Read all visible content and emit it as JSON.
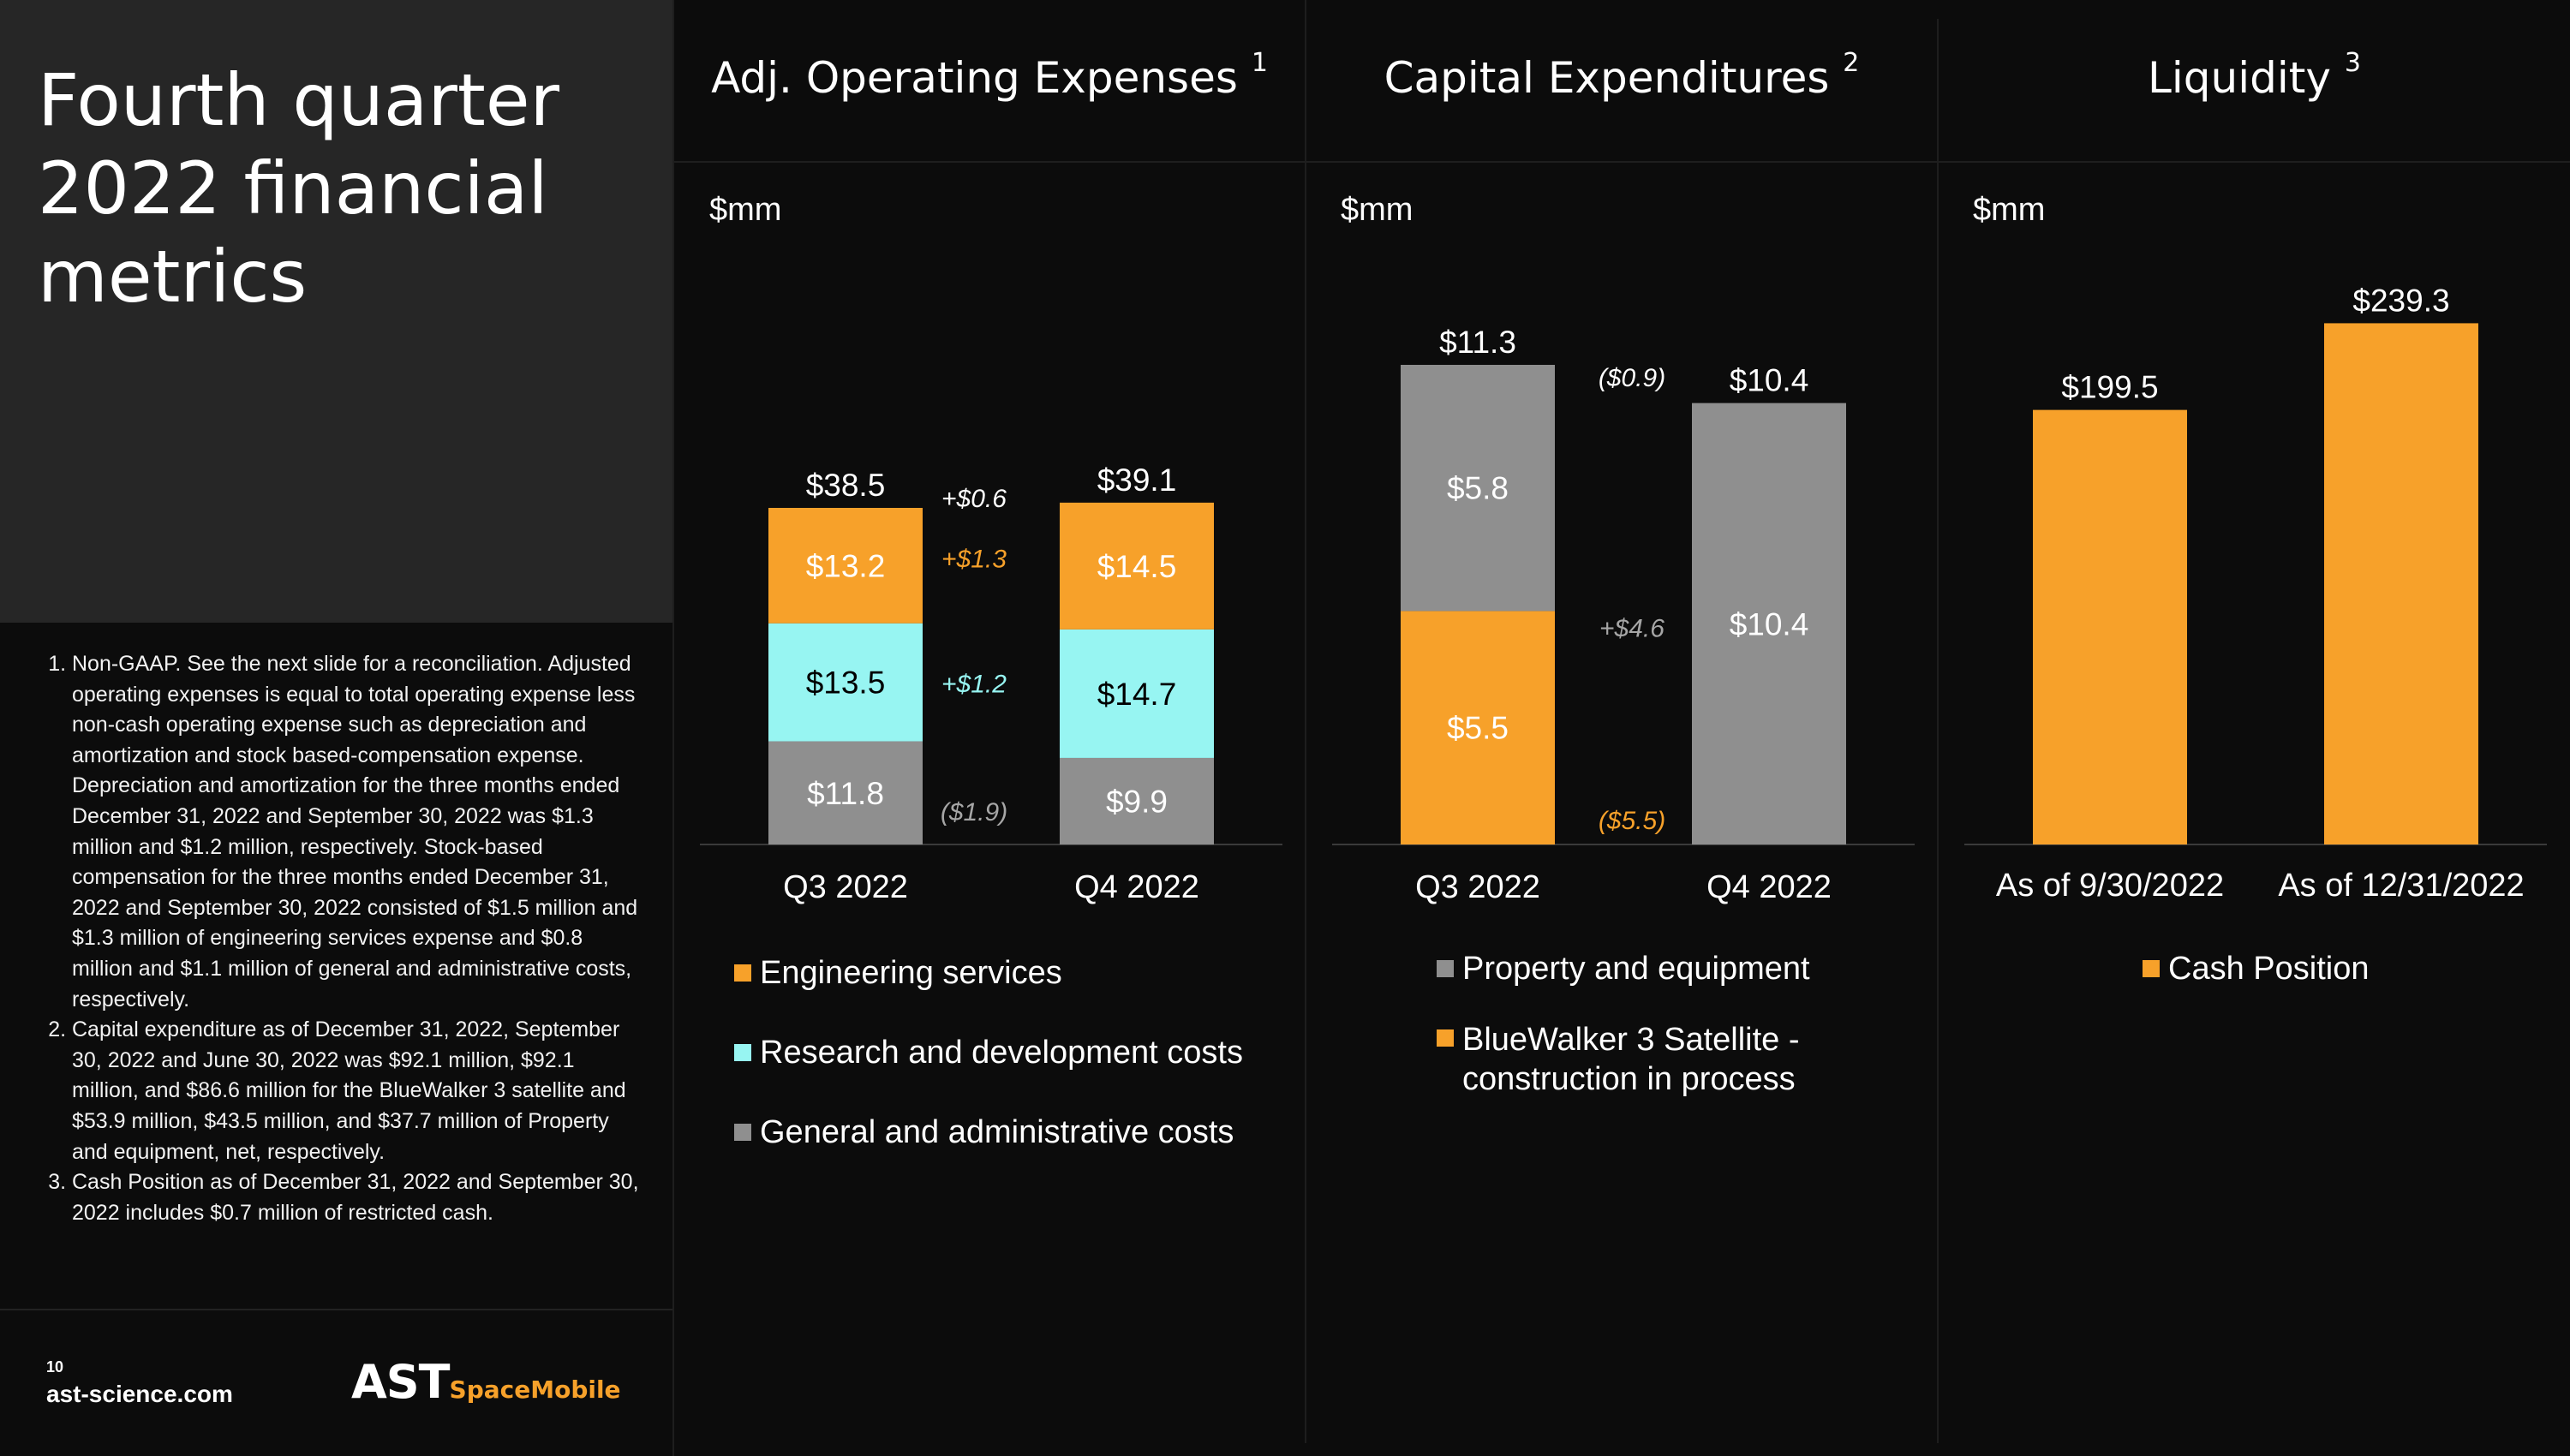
{
  "slide": {
    "title": "Fourth quarter 2022 financial metrics",
    "page_number": "10",
    "website": "ast-science.com",
    "logo_text_main": "AST",
    "logo_text_sub": "SpaceMobile",
    "footnotes": [
      "Non-GAAP. See the next slide for a reconciliation. Adjusted operating expenses is equal to total operating expense less non-cash operating expense such as depreciation and amortization and stock based-compensation expense. Depreciation and amortization for the three months ended December 31, 2022 and September 30, 2022 was $1.3 million and $1.2 million, respectively. Stock-based compensation for the three months ended December 31, 2022 and September 30, 2022 consisted of $1.5 million and $1.3 million of engineering services expense and $0.8 million and $1.1 million of general and administrative costs, respectively.",
      "Capital expenditure as of December 31, 2022, September 30, 2022 and June 30, 2022 was $92.1 million, $92.1 million, and $86.6 million for the BlueWalker 3 satellite and $53.9 million, $43.5 million, and $37.7 million of Property and equipment, net, respectively.",
      "Cash Position as of December 31, 2022 and September 30, 2022 includes $0.7 million of restricted cash."
    ]
  },
  "colors": {
    "orange": "#f7a12a",
    "cyan": "#97f5f2",
    "gray": "#8f8f8f",
    "variance_gray": "#a6a6a6"
  },
  "chart_data": [
    {
      "type": "bar",
      "stacked": true,
      "title": "Adj. Operating Expenses",
      "title_sup": "1",
      "unit_label": "$mm",
      "categories": [
        "Q3 2022",
        "Q4 2022"
      ],
      "series": [
        {
          "name": "General and administrative costs",
          "color": "gray",
          "values": [
            11.8,
            9.9
          ],
          "labels": [
            "$11.8",
            "$9.9"
          ]
        },
        {
          "name": "Research and development costs",
          "color": "cyan",
          "values": [
            13.5,
            14.7
          ],
          "labels": [
            "$13.5",
            "$14.7"
          ]
        },
        {
          "name": "Engineering services",
          "color": "orange",
          "values": [
            13.2,
            14.5
          ],
          "labels": [
            "$13.2",
            "$14.5"
          ]
        }
      ],
      "totals": [
        "$38.5",
        "$39.1"
      ],
      "total_change": "+$0.6",
      "changes": [
        "($1.9)",
        "+$1.2",
        "+$1.3"
      ],
      "legend": [
        "Engineering services",
        "Research and development costs",
        "General and administrative costs"
      ],
      "legend_colors": [
        "orange",
        "cyan",
        "gray"
      ],
      "ylim": [
        0,
        40
      ]
    },
    {
      "type": "bar",
      "stacked": true,
      "title": "Capital Expenditures",
      "title_sup": "2",
      "unit_label": "$mm",
      "categories": [
        "Q3 2022",
        "Q4 2022"
      ],
      "series": [
        {
          "name": "BlueWalker 3 Satellite - construction in process",
          "color": "orange",
          "values": [
            5.5,
            0
          ],
          "labels": [
            "$5.5",
            ""
          ]
        },
        {
          "name": "Property and equipment",
          "color": "gray",
          "values": [
            5.8,
            10.4
          ],
          "labels": [
            "$5.8",
            "$10.4"
          ]
        }
      ],
      "totals": [
        "$11.3",
        "$10.4"
      ],
      "total_change": "($0.9)",
      "changes": [
        "($5.5)",
        "+$4.6"
      ],
      "legend": [
        "Property and equipment",
        "BlueWalker 3 Satellite - construction in process"
      ],
      "legend_colors": [
        "gray",
        "orange"
      ],
      "ylim": [
        0,
        11.6
      ]
    },
    {
      "type": "bar",
      "stacked": false,
      "title": "Liquidity",
      "title_sup": "3",
      "unit_label": "$mm",
      "categories": [
        "As of 9/30/2022",
        "As of 12/31/2022"
      ],
      "series": [
        {
          "name": "Cash Position",
          "color": "orange",
          "values": [
            199.5,
            239.3
          ],
          "labels": [
            "$199.5",
            "$239.3"
          ]
        }
      ],
      "legend": [
        "Cash Position"
      ],
      "legend_colors": [
        "orange"
      ],
      "ylim": [
        0,
        243
      ]
    }
  ]
}
